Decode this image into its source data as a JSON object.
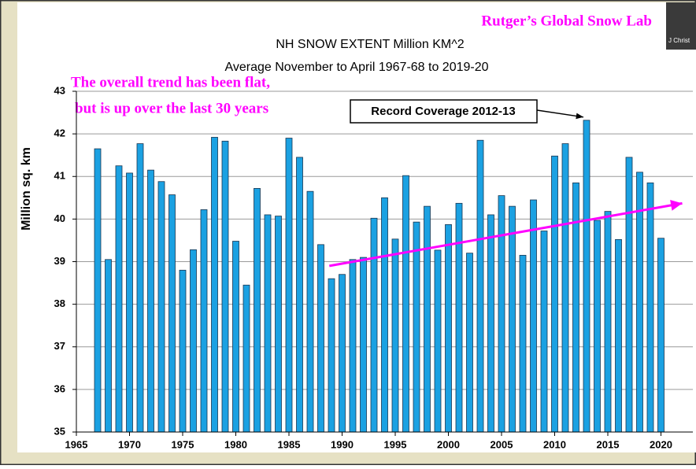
{
  "chart_data": {
    "type": "bar",
    "source": "Rutger’s Global Snow Lab",
    "title": "NH SNOW EXTENT Million KM^2",
    "subtitle": "Average November to April 1967-68 to 2019-20",
    "y_label": "Million sq. km",
    "annotations": [
      "The overall trend has been flat,",
      "but is up over the last 30 years",
      "Record Coverage 2012-13"
    ],
    "x": [
      1967,
      1968,
      1969,
      1970,
      1971,
      1972,
      1973,
      1974,
      1975,
      1976,
      1977,
      1978,
      1979,
      1980,
      1981,
      1982,
      1983,
      1984,
      1985,
      1986,
      1987,
      1988,
      1989,
      1990,
      1991,
      1992,
      1993,
      1994,
      1995,
      1996,
      1997,
      1998,
      1999,
      2000,
      2001,
      2002,
      2003,
      2004,
      2005,
      2006,
      2007,
      2008,
      2009,
      2010,
      2011,
      2012,
      2013,
      2014,
      2015,
      2016,
      2017,
      2018,
      2019,
      2020
    ],
    "values": [
      41.65,
      39.05,
      41.25,
      41.08,
      41.77,
      41.15,
      40.88,
      40.57,
      38.8,
      39.28,
      40.22,
      41.92,
      41.83,
      39.48,
      38.45,
      40.72,
      40.1,
      40.07,
      41.9,
      41.45,
      40.65,
      39.4,
      38.6,
      38.7,
      39.05,
      39.1,
      40.02,
      40.5,
      39.53,
      41.02,
      39.93,
      40.3,
      39.27,
      39.87,
      40.37,
      39.2,
      41.85,
      40.1,
      40.55,
      40.3,
      39.15,
      40.45,
      39.72,
      41.48,
      41.77,
      40.85,
      42.32,
      39.97,
      40.18,
      39.52,
      41.45,
      41.1,
      40.85,
      39.55
    ],
    "color": "#1ba1e2",
    "trend": {
      "x": [
        1988.8,
        2022
      ],
      "y": [
        38.9,
        40.37
      ],
      "color": "#ff00ff"
    },
    "xlim": [
      1965,
      2023
    ],
    "xticks": [
      1965,
      1970,
      1975,
      1980,
      1985,
      1990,
      1995,
      2000,
      2005,
      2010,
      2015,
      2020
    ],
    "ylim": [
      35,
      43
    ],
    "yticks": [
      35,
      36,
      37,
      38,
      39,
      40,
      41,
      42,
      43
    ],
    "grid": true
  },
  "webcam": {
    "label": "J Christ"
  }
}
